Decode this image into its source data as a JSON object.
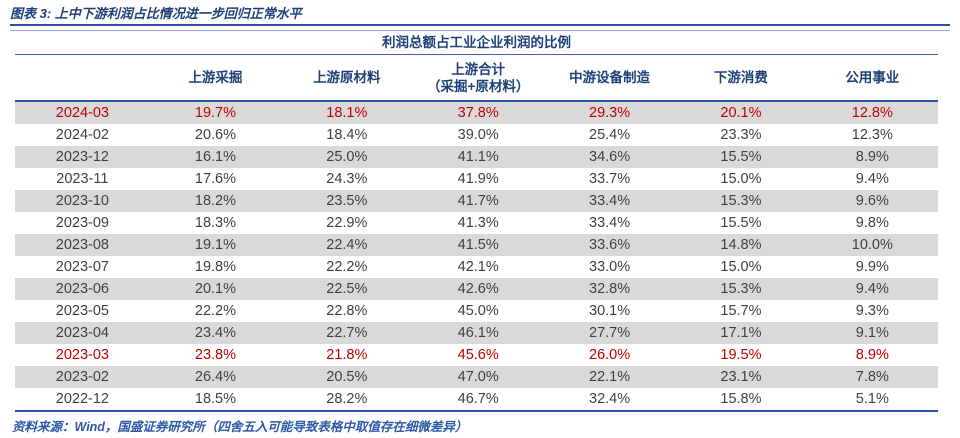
{
  "figure": {
    "title": "图表 3: 上中下游利润占比情况进一步回归正常水平",
    "source_note": "资料来源：Wind，国盛证券研究所（四舍五入可能导致表格中取值存在细微差异）"
  },
  "colors": {
    "navy_text": "#1d4077",
    "rule_blue": "#2d52a5",
    "highlight_red": "#c00000",
    "band_gray": "#d9d9d9",
    "data_text": "#404040"
  },
  "chart_data": {
    "type": "table",
    "title": "利润总额占工业企业利润的比例",
    "columns": [
      {
        "label": "上游采掘",
        "sublabel": ""
      },
      {
        "label": "上游原材料",
        "sublabel": ""
      },
      {
        "label": "上游合计",
        "sublabel": "（采掘+原材料）"
      },
      {
        "label": "中游设备制造",
        "sublabel": ""
      },
      {
        "label": "下游消费",
        "sublabel": ""
      },
      {
        "label": "公用事业",
        "sublabel": ""
      }
    ],
    "rows": [
      {
        "date": "2024-03",
        "values": [
          "19.7%",
          "18.1%",
          "37.8%",
          "29.3%",
          "20.1%",
          "12.8%"
        ],
        "highlight": true
      },
      {
        "date": "2024-02",
        "values": [
          "20.6%",
          "18.4%",
          "39.0%",
          "25.4%",
          "23.3%",
          "12.3%"
        ],
        "highlight": false
      },
      {
        "date": "2023-12",
        "values": [
          "16.1%",
          "25.0%",
          "41.1%",
          "34.6%",
          "15.5%",
          "8.9%"
        ],
        "highlight": false
      },
      {
        "date": "2023-11",
        "values": [
          "17.6%",
          "24.3%",
          "41.9%",
          "33.7%",
          "15.0%",
          "9.4%"
        ],
        "highlight": false
      },
      {
        "date": "2023-10",
        "values": [
          "18.2%",
          "23.5%",
          "41.7%",
          "33.4%",
          "15.3%",
          "9.6%"
        ],
        "highlight": false
      },
      {
        "date": "2023-09",
        "values": [
          "18.3%",
          "22.9%",
          "41.3%",
          "33.4%",
          "15.5%",
          "9.8%"
        ],
        "highlight": false
      },
      {
        "date": "2023-08",
        "values": [
          "19.1%",
          "22.4%",
          "41.5%",
          "33.6%",
          "14.8%",
          "10.0%"
        ],
        "highlight": false
      },
      {
        "date": "2023-07",
        "values": [
          "19.8%",
          "22.2%",
          "42.1%",
          "33.0%",
          "15.0%",
          "9.9%"
        ],
        "highlight": false
      },
      {
        "date": "2023-06",
        "values": [
          "20.1%",
          "22.5%",
          "42.6%",
          "32.8%",
          "15.3%",
          "9.4%"
        ],
        "highlight": false
      },
      {
        "date": "2023-05",
        "values": [
          "22.2%",
          "22.8%",
          "45.0%",
          "30.1%",
          "15.7%",
          "9.3%"
        ],
        "highlight": false
      },
      {
        "date": "2023-04",
        "values": [
          "23.4%",
          "22.7%",
          "46.1%",
          "27.7%",
          "17.1%",
          "9.1%"
        ],
        "highlight": false
      },
      {
        "date": "2023-03",
        "values": [
          "23.8%",
          "21.8%",
          "45.6%",
          "26.0%",
          "19.5%",
          "8.9%"
        ],
        "highlight": true
      },
      {
        "date": "2023-02",
        "values": [
          "26.4%",
          "20.5%",
          "47.0%",
          "22.1%",
          "23.1%",
          "7.8%"
        ],
        "highlight": false
      },
      {
        "date": "2022-12",
        "values": [
          "18.5%",
          "28.2%",
          "46.7%",
          "32.4%",
          "15.8%",
          "5.1%"
        ],
        "highlight": false
      }
    ]
  }
}
